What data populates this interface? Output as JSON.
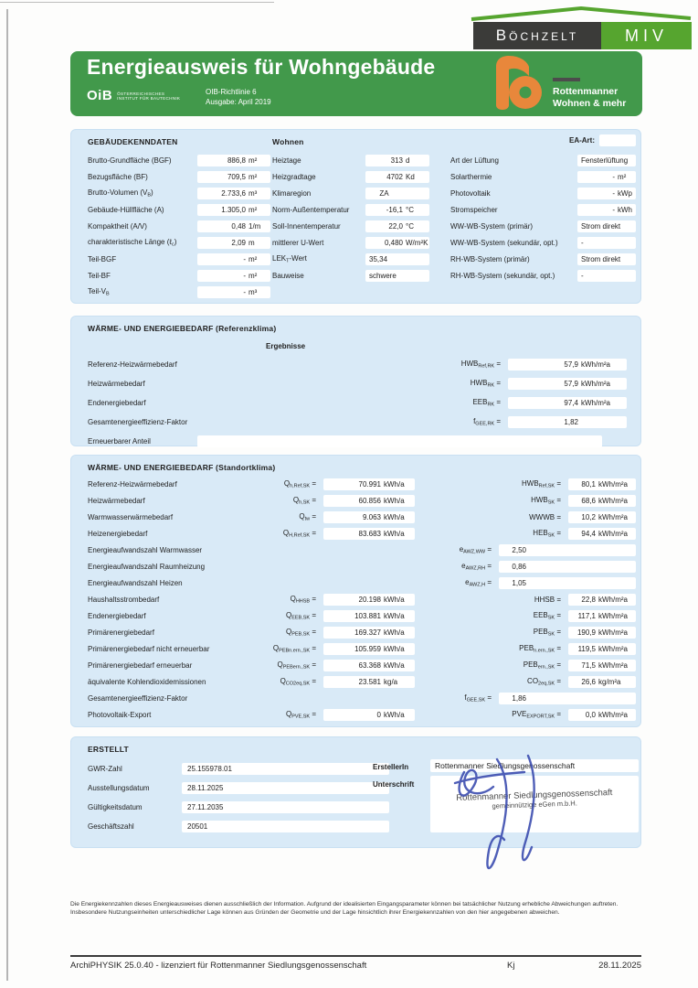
{
  "colors": {
    "band_green": "#42994b",
    "logo_green": "#56a52f",
    "logo_dark": "#3b3b39",
    "ro_orange": "#e8873b",
    "panel_blue": "#d9eaf7",
    "ink_blue": "#3c4db0"
  },
  "brand": {
    "bochzelt": "Böchzelt",
    "miv": "MIV",
    "ro_line1": "Rottenmanner",
    "ro_line2": "Wohnen & mehr"
  },
  "header": {
    "title": "Energieausweis für Wohngebäude",
    "oib_name": "OiB",
    "oib_sub1": "ÖSTERREICHISCHES",
    "oib_sub2": "INSTITUT FÜR BAUTECHNIK",
    "richtlinie": "OIB-Richtlinie 6",
    "ausgabe": "Ausgabe: April 2019"
  },
  "panel1": {
    "col1_title": "GEBÄUDEKENNDATEN",
    "col2_title": "Wohnen",
    "ea_label": "EA-Art:",
    "col1_rows": [
      {
        "label": "Brutto-Grundfläche (BGF)",
        "value": "886,8",
        "unit": "m²",
        "align": ""
      },
      {
        "label": "Bezugsfläche (BF)",
        "value": "709,5",
        "unit": "m²",
        "align": ""
      },
      {
        "label": "Brutto-Volumen (V<sub>B</sub>)",
        "value": "2.733,6",
        "unit": "m³",
        "align": ""
      },
      {
        "label": "Gebäude-Hüllfläche (A)",
        "value": "1.305,0",
        "unit": "m²",
        "align": ""
      },
      {
        "label": "Kompaktheit (A/V)",
        "value": "0,48",
        "unit": "1/m",
        "align": ""
      },
      {
        "label": "charakteristische Länge (ℓ<sub>c</sub>)",
        "value": "2,09",
        "unit": "m",
        "align": ""
      },
      {
        "label": "Teil-BGF",
        "value": "-",
        "unit": "m²",
        "align": ""
      },
      {
        "label": "Teil-BF",
        "value": "-",
        "unit": "m²",
        "align": ""
      },
      {
        "label": "Teil-V<sub>B</sub>",
        "value": "-",
        "unit": "m³",
        "align": ""
      }
    ],
    "col2_rows": [
      {
        "label": "Heiztage",
        "value": "313",
        "unit": "d",
        "align": ""
      },
      {
        "label": "Heizgradtage",
        "value": "4702",
        "unit": "Kd",
        "align": ""
      },
      {
        "label": "Klimaregion",
        "value": "ZA",
        "unit": "",
        "align": "ca"
      },
      {
        "label": "Norm-Außentemperatur",
        "value": "-16,1",
        "unit": "°C",
        "align": ""
      },
      {
        "label": "Soll-Innentemperatur",
        "value": "22,0",
        "unit": "°C",
        "align": ""
      },
      {
        "label": "mittlerer U-Wert",
        "value": "0,480",
        "unit": "W/m²K",
        "align": ""
      },
      {
        "label": "LEK<sub>T</sub>-Wert",
        "value": "35,34",
        "unit": "",
        "align": "la"
      },
      {
        "label": "Bauweise",
        "value": "schwere",
        "unit": "",
        "align": "la"
      }
    ],
    "col3_rows": [
      {
        "label": "Art der Lüftung",
        "value": "Fensterlüftung",
        "unit": "",
        "align": "la"
      },
      {
        "label": "Solarthermie",
        "value": "-",
        "unit": "m²",
        "align": ""
      },
      {
        "label": "Photovoltaik",
        "value": "-",
        "unit": "kWp",
        "align": ""
      },
      {
        "label": "Stromspeicher",
        "value": "-",
        "unit": "kWh",
        "align": ""
      },
      {
        "label": "WW-WB-System (primär)",
        "value": "Strom direkt",
        "unit": "",
        "align": "la"
      },
      {
        "label": "WW-WB-System (sekundär, opt.)",
        "value": "-",
        "unit": "",
        "align": "la"
      },
      {
        "label": "RH-WB-System (primär)",
        "value": "Strom direkt",
        "unit": "",
        "align": "la"
      },
      {
        "label": "RH-WB-System (sekundär, opt.)",
        "value": "-",
        "unit": "",
        "align": "la"
      }
    ]
  },
  "panel2": {
    "title": "WÄRME- UND ENERGIEBEDARF (Referenzklima)",
    "col_header": "Ergebnisse",
    "rows": [
      {
        "label": "Referenz-Heizwärmebedarf",
        "symbol": "HWB<sub>Ref,RK</sub> =",
        "value": "57,9",
        "unit": "kWh/m²a"
      },
      {
        "label": "Heizwärmebedarf",
        "symbol": "HWB<sub>RK</sub> =",
        "value": "57,9",
        "unit": "kWh/m²a"
      },
      {
        "label": "Endenergiebedarf",
        "symbol": "EEB<sub>RK</sub> =",
        "value": "97,4",
        "unit": "kWh/m²a"
      },
      {
        "label": "Gesamtenergieeffizienz-Faktor",
        "symbol": "f<sub>GEE,RK</sub> =",
        "value": "1,82",
        "unit": ""
      }
    ],
    "extra_label": "Erneuerbarer Anteil"
  },
  "panel3": {
    "title": "WÄRME- UND ENERGIEBEDARF (Standortklima)",
    "rows": [
      {
        "label": "Referenz-Heizwärmebedarf",
        "s1": "Q<sub>h,Ref,SK</sub> =",
        "v1": "70.991",
        "u1": "kWh/a",
        "s2": "HWB<sub>Ref,SK</sub> =",
        "v2": "80,1",
        "u2": "kWh/m²a",
        "w": ""
      },
      {
        "label": "Heizwärmebedarf",
        "s1": "Q<sub>h,SK</sub> =",
        "v1": "60.856",
        "u1": "kWh/a",
        "s2": "HWB<sub>SK</sub> =",
        "v2": "68,6",
        "u2": "kWh/m²a",
        "w": ""
      },
      {
        "label": "Warmwasserwärmebedarf",
        "s1": "Q<sub>tw</sub> =",
        "v1": "9.063",
        "u1": "kWh/a",
        "s2": "WWWB =",
        "v2": "10,2",
        "u2": "kWh/m²a",
        "w": ""
      },
      {
        "label": "Heizenergiebedarf",
        "s1": "Q<sub>H,Ref,SK</sub> =",
        "v1": "83.683",
        "u1": "kWh/a",
        "s2": "HEB<sub>SK</sub> =",
        "v2": "94,4",
        "u2": "kWh/m²a",
        "w": ""
      },
      {
        "label": "Energieaufwandszahl Warmwasser",
        "s1": "",
        "v1": "",
        "u1": "",
        "s2": "e<sub>AWZ,WW</sub> =",
        "v2": "2,50",
        "u2": "",
        "w": "wide"
      },
      {
        "label": "Energieaufwandszahl Raumheizung",
        "s1": "",
        "v1": "",
        "u1": "",
        "s2": "e<sub>AWZ,RH</sub> =",
        "v2": "0,86",
        "u2": "",
        "w": "wide"
      },
      {
        "label": "Energieaufwandszahl Heizen",
        "s1": "",
        "v1": "",
        "u1": "",
        "s2": "e<sub>AWZ,H</sub> =",
        "v2": "1,05",
        "u2": "",
        "w": "wide"
      },
      {
        "label": "Haushaltsstrombedarf",
        "s1": "Q<sub>HHSB</sub> =",
        "v1": "20.198",
        "u1": "kWh/a",
        "s2": "HHSB =",
        "v2": "22,8",
        "u2": "kWh/m²a",
        "w": ""
      },
      {
        "label": "Endenergiebedarf",
        "s1": "Q<sub>EEB,SK</sub> =",
        "v1": "103.881",
        "u1": "kWh/a",
        "s2": "EEB<sub>SK</sub> =",
        "v2": "117,1",
        "u2": "kWh/m²a",
        "w": ""
      },
      {
        "label": "Primärenergiebedarf",
        "s1": "Q<sub>PEB,SK</sub> =",
        "v1": "169.327",
        "u1": "kWh/a",
        "s2": "PEB<sub>SK</sub> =",
        "v2": "190,9",
        "u2": "kWh/m²a",
        "w": ""
      },
      {
        "label": "Primärenergiebedarf nicht erneuerbar",
        "s1": "Q<sub>PEBn.ern.,SK</sub> =",
        "v1": "105.959",
        "u1": "kWh/a",
        "s2": "PEB<sub>n.ern.,SK</sub> =",
        "v2": "119,5",
        "u2": "kWh/m²a",
        "w": ""
      },
      {
        "label": "Primärenergiebedarf erneuerbar",
        "s1": "Q<sub>PEBern.,SK</sub> =",
        "v1": "63.368",
        "u1": "kWh/a",
        "s2": "PEB<sub>ern.,SK</sub> =",
        "v2": "71,5",
        "u2": "kWh/m²a",
        "w": ""
      },
      {
        "label": "äquivalente Kohlendioxidemissionen",
        "s1": "Q<sub>CO2eq,SK</sub> =",
        "v1": "23.581",
        "u1": "kg/a",
        "s2": "CO<sub>2eq,SK</sub> =",
        "v2": "26,6",
        "u2": "kg/m²a",
        "w": ""
      },
      {
        "label": "Gesamtenergieeffizienz-Faktor",
        "s1": "",
        "v1": "",
        "u1": "",
        "s2": "f<sub>GEE,SK</sub> =",
        "v2": "1,86",
        "u2": "",
        "w": "wide"
      },
      {
        "label": "Photovoltaik-Export",
        "s1": "Q<sub>PVE,SK</sub> =",
        "v1": "0",
        "u1": "kWh/a",
        "s2": "PVE<sub>EXPORT,SK</sub> =",
        "v2": "0,0",
        "u2": "kWh/m²a",
        "w": ""
      }
    ]
  },
  "panel4": {
    "title": "ERSTELLT",
    "left_rows": [
      {
        "label": "GWR-Zahl",
        "value": "25.155978.01"
      },
      {
        "label": "Ausstellungsdatum",
        "value": "28.11.2025"
      },
      {
        "label": "Gültigkeitsdatum",
        "value": "27.11.2035"
      },
      {
        "label": "Geschäftszahl",
        "value": "20501"
      }
    ],
    "ersteller_label": "ErstellerIn",
    "ersteller_value": "Rottenmanner Siedlungsgenossenschaft",
    "unterschrift_label": "Unterschrift",
    "stamp_line1": "Rottenmanner Siedlungsgenossenschaft",
    "stamp_line2": "gemeinnützige eGen m.b.H."
  },
  "disclaimer": {
    "line1": "Die Energiekennzahlen dieses Energieausweises dienen ausschließlich der Information. Aufgrund der idealisierten Eingangsparameter können bei tatsächlicher Nutzung erhebliche Abweichungen auftreten.",
    "line2": "Insbesondere Nutzungseinheiten unterschiedlicher Lage können aus Gründen der Geometrie und der Lage hinsichtlich ihrer Energiekennzahlen von den hier angegebenen abweichen."
  },
  "footer": {
    "left": "ArchiPHYSIK 25.0.40 - lizenziert für Rottenmanner Siedlungsgenossenschaft",
    "center": "Kj",
    "right": "28.11.2025"
  }
}
